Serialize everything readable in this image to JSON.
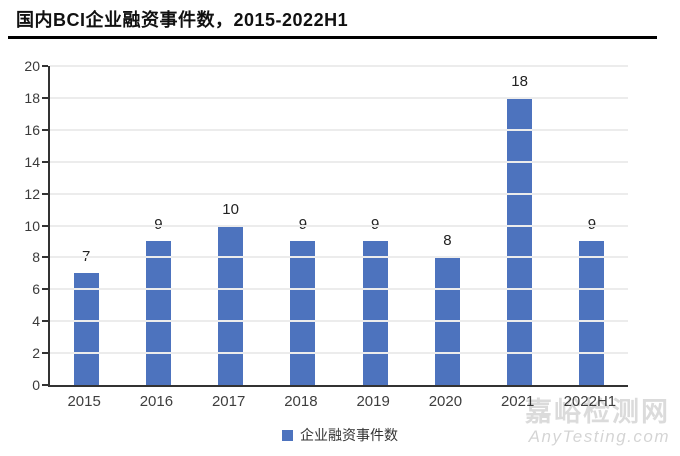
{
  "title": "国内BCI企业融资事件数，2015-2022H1",
  "chart_data": {
    "type": "bar",
    "title": "国内BCI企业融资事件数，2015-2022H1",
    "categories": [
      "2015",
      "2016",
      "2017",
      "2018",
      "2019",
      "2020",
      "2021",
      "2022H1"
    ],
    "series": [
      {
        "name": "企业融资事件数",
        "values": [
          7,
          9,
          10,
          9,
          9,
          8,
          18,
          9
        ]
      }
    ],
    "xlabel": "",
    "ylabel": "",
    "ylim": [
      0,
      20
    ],
    "ytick_step": 2,
    "grid": true,
    "legend_position": "bottom",
    "bar_color": "#4d73be"
  },
  "legend": {
    "label": "企业融资事件数",
    "swatch_color": "#4d73be"
  },
  "watermark": {
    "line1": "嘉峪检测网",
    "line2": "AnyTesting.com"
  },
  "colors": {
    "bar": "#4d73be",
    "axis": "#333333",
    "grid": "#ececec",
    "title": "#111111"
  }
}
